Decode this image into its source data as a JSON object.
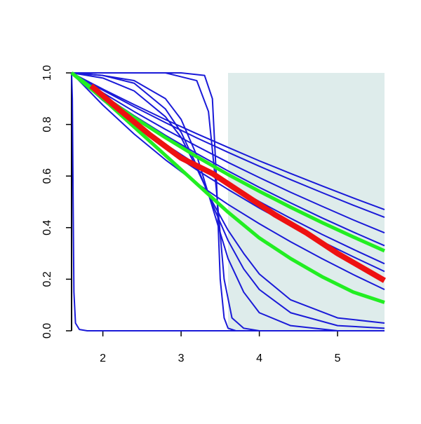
{
  "chart_data": {
    "type": "line",
    "xlim": [
      1.6,
      5.6
    ],
    "ylim": [
      0,
      1
    ],
    "xticks": [
      2,
      3,
      4,
      5
    ],
    "yticks": [
      {
        "value": 0,
        "label": "0.0"
      },
      {
        "value": 0.2,
        "label": "0.2"
      },
      {
        "value": 0.4,
        "label": "0.4"
      },
      {
        "value": 0.6,
        "label": "0.6"
      },
      {
        "value": 0.8,
        "label": "0.8"
      },
      {
        "value": 1,
        "label": "1.0"
      }
    ],
    "shaded_region": {
      "xlim": [
        3.6,
        5.6
      ],
      "color": "#deeceb"
    },
    "series": [
      {
        "color": "#1a1ad8",
        "width": 2,
        "x": [
          1.6,
          2.0,
          2.4,
          2.8,
          3.2,
          3.6,
          4.0,
          4.4,
          4.8,
          5.2,
          5.6
        ],
        "values": [
          1,
          0.937,
          0.877,
          0.819,
          0.764,
          0.711,
          0.659,
          0.61,
          0.562,
          0.515,
          0.47
        ]
      },
      {
        "color": "#1a1ad8",
        "width": 2,
        "x": [
          1.6,
          2.0,
          2.4,
          2.8,
          3.2,
          3.6,
          4.0,
          4.4,
          4.8,
          5.2,
          5.6
        ],
        "values": [
          1,
          0.933,
          0.869,
          0.807,
          0.748,
          0.692,
          0.638,
          0.586,
          0.536,
          0.487,
          0.44
        ]
      },
      {
        "color": "#1a1ad8",
        "width": 2,
        "x": [
          1.6,
          2.0,
          2.4,
          2.8,
          3.2,
          3.6,
          4.0,
          4.4,
          4.8,
          5.2,
          5.6
        ],
        "values": [
          1,
          0.923,
          0.85,
          0.781,
          0.716,
          0.653,
          0.594,
          0.537,
          0.483,
          0.43,
          0.38
        ]
      },
      {
        "color": "#1a1ad8",
        "width": 2,
        "x": [
          1.6,
          2.0,
          2.4,
          2.8,
          3.2,
          3.6,
          4.0,
          4.4,
          4.8,
          5.2,
          5.6
        ],
        "values": [
          1,
          0.914,
          0.834,
          0.758,
          0.687,
          0.62,
          0.556,
          0.496,
          0.438,
          0.383,
          0.33
        ]
      },
      {
        "color": "#1a1ad8",
        "width": 2,
        "x": [
          1.6,
          2.0,
          2.4,
          2.8,
          3.2,
          3.6,
          4.0,
          4.4,
          4.8,
          5.2,
          5.6
        ],
        "values": [
          1,
          0.9,
          0.808,
          0.723,
          0.644,
          0.57,
          0.501,
          0.436,
          0.374,
          0.316,
          0.26
        ]
      },
      {
        "color": "#1a1ad8",
        "width": 2,
        "x": [
          1.6,
          2.0,
          2.4,
          2.8,
          3.2,
          3.6,
          4.0,
          4.4,
          4.8,
          5.2,
          5.6
        ],
        "values": [
          1,
          0.893,
          0.796,
          0.706,
          0.624,
          0.548,
          0.476,
          0.409,
          0.346,
          0.287,
          0.23
        ]
      },
      {
        "color": "#1a1ad8",
        "width": 2,
        "x": [
          1.6,
          2.0,
          2.4,
          2.8,
          3.2,
          3.6,
          4.0,
          4.4,
          4.8,
          5.2,
          5.6
        ],
        "values": [
          1,
          0.875,
          0.763,
          0.663,
          0.572,
          0.49,
          0.415,
          0.345,
          0.28,
          0.218,
          0.16
        ]
      },
      {
        "color": "#1a1ad8",
        "width": 2,
        "x": [
          1.6,
          1.61,
          1.62,
          1.63,
          1.65,
          1.7,
          1.8,
          5.6
        ],
        "values": [
          1,
          0.9,
          0.5,
          0.15,
          0.03,
          0.005,
          0,
          0
        ]
      },
      {
        "color": "#1a1ad8",
        "width": 2,
        "x": [
          1.6,
          3.0,
          3.3,
          3.4,
          3.45,
          3.5,
          3.55,
          3.6,
          3.7,
          5.6
        ],
        "values": [
          1,
          1,
          0.99,
          0.9,
          0.6,
          0.2,
          0.05,
          0.01,
          0,
          0
        ]
      },
      {
        "color": "#1a1ad8",
        "width": 2,
        "x": [
          1.6,
          2.8,
          3.2,
          3.35,
          3.45,
          3.55,
          3.65,
          3.8,
          4.0,
          5.6
        ],
        "values": [
          1,
          1,
          0.97,
          0.85,
          0.55,
          0.2,
          0.05,
          0.01,
          0,
          0
        ]
      },
      {
        "color": "#1a1ad8",
        "width": 2,
        "x": [
          1.6,
          2.0,
          2.4,
          2.8,
          3.0,
          3.2,
          3.4,
          3.6,
          3.8,
          4.0,
          4.4,
          5.0,
          5.6
        ],
        "values": [
          1,
          0.99,
          0.97,
          0.9,
          0.82,
          0.68,
          0.48,
          0.28,
          0.15,
          0.07,
          0.02,
          0,
          0
        ]
      },
      {
        "color": "#1a1ad8",
        "width": 2,
        "x": [
          1.6,
          2.0,
          2.4,
          2.8,
          3.0,
          3.2,
          3.4,
          3.6,
          3.8,
          4.0,
          4.4,
          5.0,
          5.6
        ],
        "values": [
          1,
          0.99,
          0.96,
          0.86,
          0.77,
          0.64,
          0.49,
          0.35,
          0.24,
          0.16,
          0.07,
          0.02,
          0.01
        ]
      },
      {
        "color": "#1a1ad8",
        "width": 2,
        "x": [
          1.6,
          2.0,
          2.4,
          2.8,
          3.0,
          3.2,
          3.4,
          3.6,
          3.8,
          4.0,
          4.4,
          5.0,
          5.6
        ],
        "values": [
          1,
          0.98,
          0.93,
          0.83,
          0.75,
          0.63,
          0.5,
          0.39,
          0.3,
          0.22,
          0.12,
          0.05,
          0.03
        ]
      },
      {
        "color": "#22ee22",
        "width": 5,
        "x": [
          1.6,
          2.0,
          2.4,
          2.8,
          3.2,
          3.6,
          4.0,
          4.4,
          4.8,
          5.2,
          5.6
        ],
        "values": [
          1,
          0.91,
          0.827,
          0.749,
          0.675,
          0.606,
          0.541,
          0.479,
          0.42,
          0.364,
          0.31
        ]
      },
      {
        "color": "#22ee22",
        "width": 5,
        "x": [
          1.6,
          2.0,
          2.4,
          2.8,
          3.2,
          3.6,
          4.0,
          4.4,
          4.8,
          5.2,
          5.6
        ],
        "values": [
          1,
          0.9,
          0.79,
          0.68,
          0.57,
          0.46,
          0.36,
          0.28,
          0.21,
          0.15,
          0.11
        ]
      },
      {
        "color": "#ee1111",
        "width": 8,
        "x": [
          1.85,
          2.2,
          2.6,
          3.0,
          3.4,
          3.8,
          4.2,
          4.6,
          5.0,
          5.4,
          5.6
        ],
        "values": [
          0.95,
          0.86,
          0.76,
          0.67,
          0.61,
          0.53,
          0.45,
          0.38,
          0.3,
          0.23,
          0.195
        ]
      }
    ]
  }
}
